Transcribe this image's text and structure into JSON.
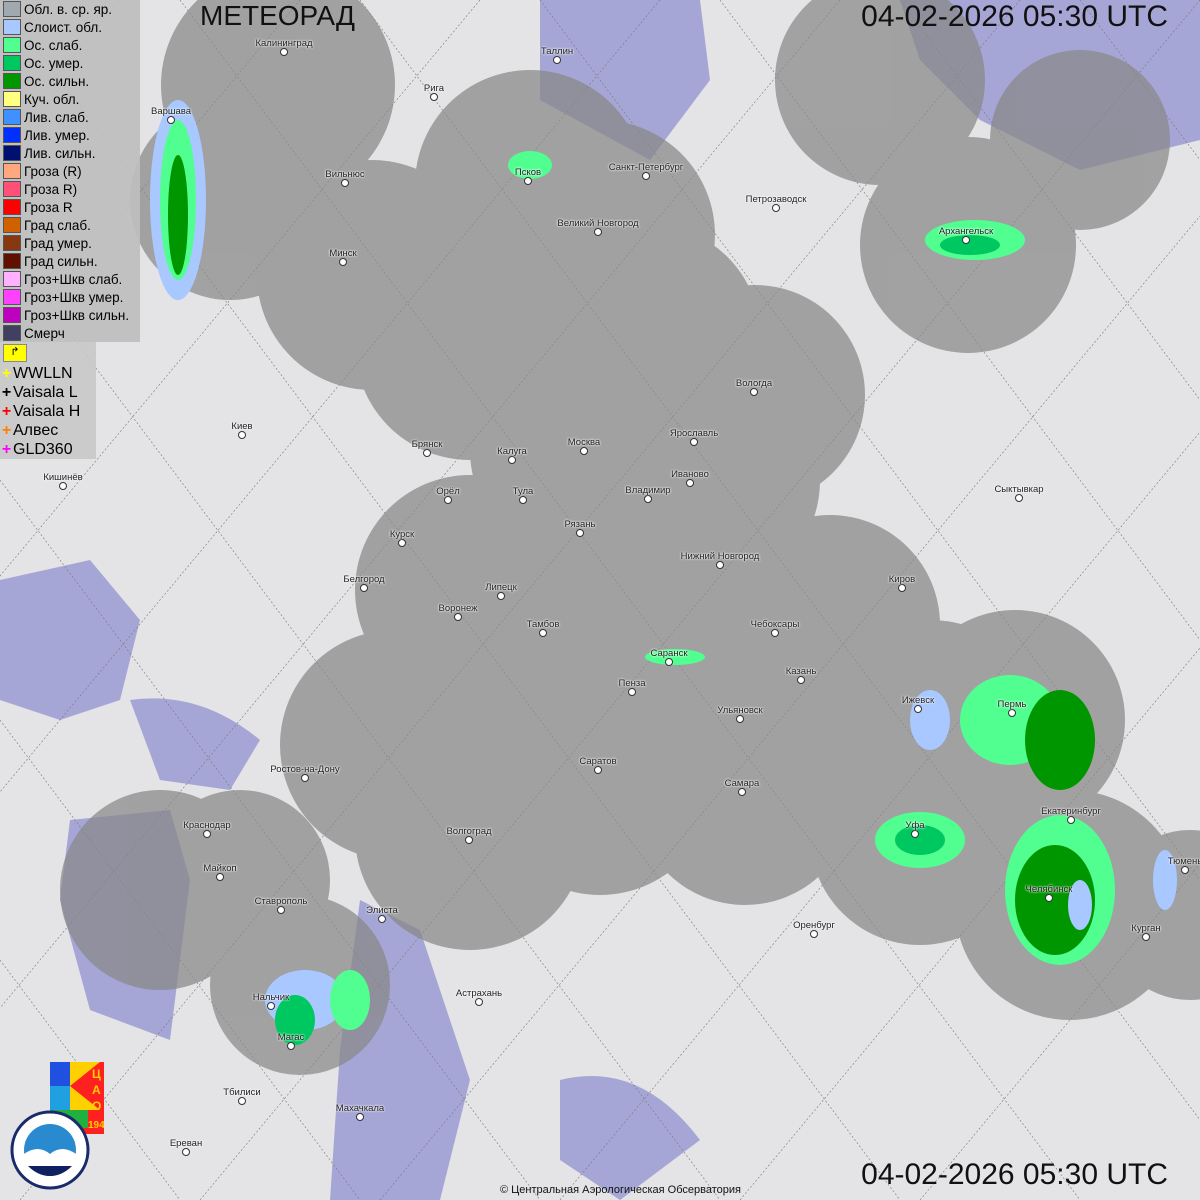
{
  "header": {
    "title": "МЕТЕОРАД",
    "timestamp_top": "04-02-2026  05:30 UTC",
    "timestamp_bottom": "04-02-2026  05:30 UTC"
  },
  "legend": [
    {
      "label": "Обл. в. ср. яр.",
      "color": "#a0a8b0"
    },
    {
      "label": "Слоист. обл.",
      "color": "#a8c8ff"
    },
    {
      "label": "Ос. слаб.",
      "color": "#50ff90"
    },
    {
      "label": "Ос. умер.",
      "color": "#00c860"
    },
    {
      "label": "Ос. сильн.",
      "color": "#009600"
    },
    {
      "label": "Куч. обл.",
      "color": "#ffff80"
    },
    {
      "label": "Лив. слаб.",
      "color": "#4090ff"
    },
    {
      "label": "Лив. умер.",
      "color": "#0030ff"
    },
    {
      "label": "Лив. сильн.",
      "color": "#001070"
    },
    {
      "label": "Гроза (R)",
      "color": "#ffa880"
    },
    {
      "label": "Гроза R)",
      "color": "#ff5078"
    },
    {
      "label": "Гроза R",
      "color": "#ff0000"
    },
    {
      "label": "Град слаб.",
      "color": "#d06000"
    },
    {
      "label": "Град умер.",
      "color": "#883810"
    },
    {
      "label": "Град сильн.",
      "color": "#601000"
    },
    {
      "label": "Гроз+Шкв слаб.",
      "color": "#ffb0ff"
    },
    {
      "label": "Гроз+Шкв умер.",
      "color": "#ff40ff"
    },
    {
      "label": "Гроз+Шкв сильн.",
      "color": "#c000c0"
    },
    {
      "label": "Смерч",
      "color": "#404060"
    }
  ],
  "lightning": [
    {
      "label": "WWLLN",
      "color": "#ffff00"
    },
    {
      "label": "Vaisala L",
      "color": "#000000"
    },
    {
      "label": "Vaisala H",
      "color": "#ff0000"
    },
    {
      "label": "Алвес",
      "color": "#ff8000"
    },
    {
      "label": "GLD360",
      "color": "#ff00ff"
    }
  ],
  "cities": [
    "Калининград",
    "Таллин",
    "Рига",
    "Варшава",
    "Псков",
    "Санкт-Петербург",
    "Вильнюс",
    "Петрозаводск",
    "Великий Новгород",
    "Архангельск",
    "Минск",
    "Вологда",
    "Киев",
    "Брянск",
    "Калуга",
    "Москва",
    "Ярославль",
    "Кишинёв",
    "Иваново",
    "Орёл",
    "Тула",
    "Владимир",
    "Сыктывкар",
    "Рязань",
    "Курск",
    "Нижний Новгород",
    "Киров",
    "Белгород",
    "Липецк",
    "Воронеж",
    "Тамбов",
    "Чебоксары",
    "Саранск",
    "Казань",
    "Пенза",
    "Ижевск",
    "Пермь",
    "Ульяновск",
    "Ростов-на-Дону",
    "Саратов",
    "Самара",
    "Екатеринбург",
    "Краснодар",
    "Уфа",
    "Волгоград",
    "Тюмень",
    "Майкоп",
    "Челябинск",
    "Ставрополь",
    "Элиста",
    "Оренбург",
    "Курган",
    "Астрахань",
    "Нальчик",
    "Магас",
    "Тбилиси",
    "Махачкала",
    "Ереван"
  ],
  "logos": {
    "cao": "ЦАО 1941",
    "roshydromet": "РОСГИДРОМЕТ ROSHYDROMET"
  },
  "footer": "© Центральная Аэрологическая Обсерватория"
}
